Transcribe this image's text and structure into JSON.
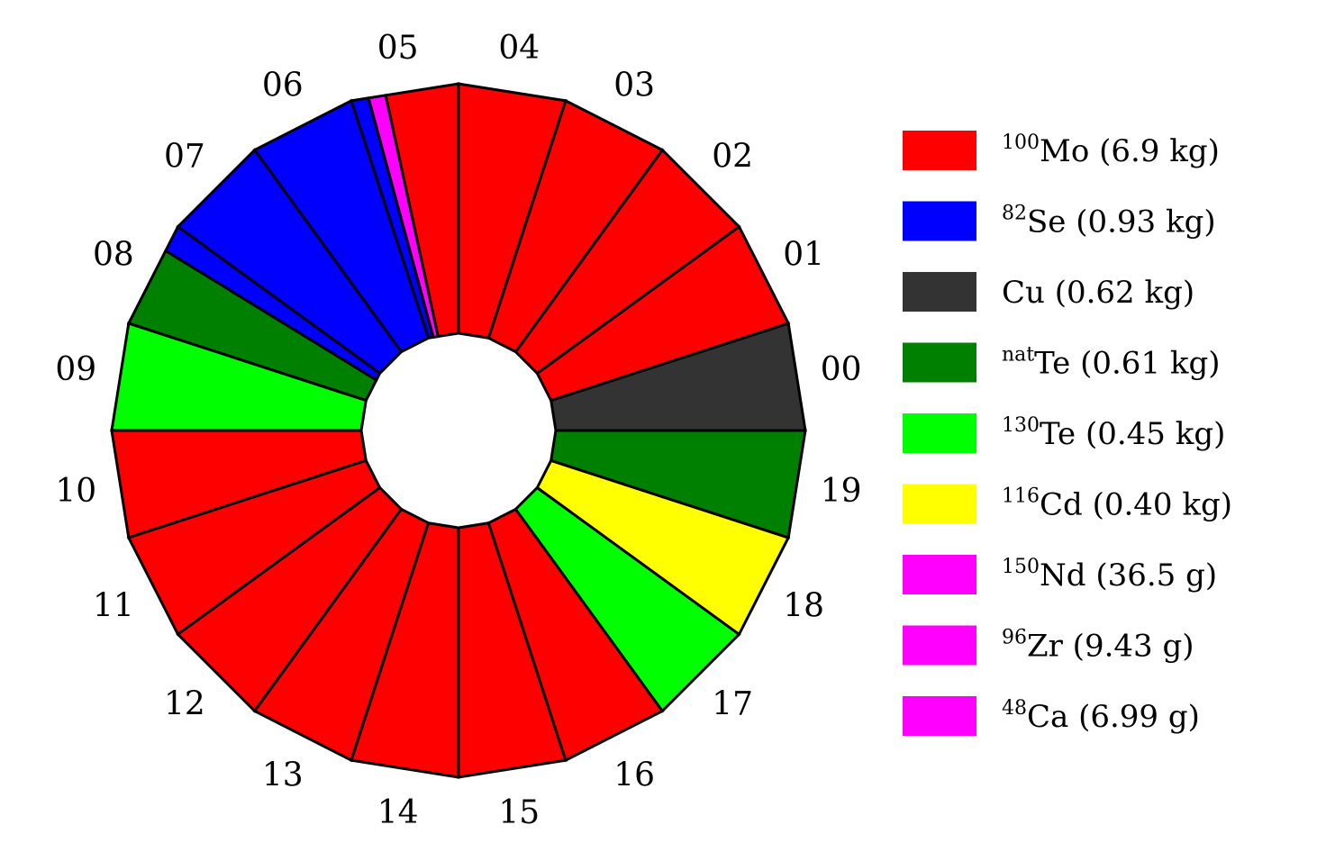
{
  "sectors": [
    {
      "label": "00",
      "parts": [
        {
          "span": 1,
          "color": "#333333"
        }
      ]
    },
    {
      "label": "01",
      "parts": [
        {
          "span": 1,
          "color": "#ff0000"
        }
      ]
    },
    {
      "label": "02",
      "parts": [
        {
          "span": 1,
          "color": "#ff0000"
        }
      ]
    },
    {
      "label": "03",
      "parts": [
        {
          "span": 1,
          "color": "#ff0000"
        }
      ]
    },
    {
      "label": "04",
      "parts": [
        {
          "span": 1,
          "color": "#ff0000"
        }
      ]
    },
    {
      "label": "05",
      "parts": [
        {
          "span": 0.68,
          "color": "#ff0000"
        },
        {
          "span": 0.16,
          "color": "#ff00ff"
        },
        {
          "span": 0.16,
          "color": "#0000ff"
        }
      ]
    },
    {
      "label": "06",
      "parts": [
        {
          "span": 1,
          "color": "#0000ff"
        }
      ]
    },
    {
      "label": "07",
      "parts": [
        {
          "span": 1,
          "color": "#0000ff"
        }
      ]
    },
    {
      "label": "08",
      "parts": [
        {
          "span": 0.25,
          "color": "#0000ff"
        },
        {
          "span": 0.75,
          "color": "#008000"
        }
      ]
    },
    {
      "label": "09",
      "parts": [
        {
          "span": 1,
          "color": "#00ff00"
        }
      ]
    },
    {
      "label": "10",
      "parts": [
        {
          "span": 1,
          "color": "#ff0000"
        }
      ]
    },
    {
      "label": "11",
      "parts": [
        {
          "span": 1,
          "color": "#ff0000"
        }
      ]
    },
    {
      "label": "12",
      "parts": [
        {
          "span": 1,
          "color": "#ff0000"
        }
      ]
    },
    {
      "label": "13",
      "parts": [
        {
          "span": 1,
          "color": "#ff0000"
        }
      ]
    },
    {
      "label": "14",
      "parts": [
        {
          "span": 1,
          "color": "#ff0000"
        }
      ]
    },
    {
      "label": "15",
      "parts": [
        {
          "span": 1,
          "color": "#ff0000"
        }
      ]
    },
    {
      "label": "16",
      "parts": [
        {
          "span": 1,
          "color": "#ff0000"
        }
      ]
    },
    {
      "label": "17",
      "parts": [
        {
          "span": 1,
          "color": "#00ff00"
        }
      ]
    },
    {
      "label": "18",
      "parts": [
        {
          "span": 1,
          "color": "#ffff00"
        }
      ]
    },
    {
      "label": "19",
      "parts": [
        {
          "span": 1,
          "color": "#008000"
        }
      ]
    }
  ],
  "legend": [
    {
      "sup": "100",
      "isotope": "Mo",
      "amount": "(6.9 kg)",
      "color": "#ff0000"
    },
    {
      "sup": "82",
      "isotope": "Se",
      "amount": "(0.93 kg)",
      "color": "#0000ff"
    },
    {
      "sup": "",
      "isotope": "Cu",
      "amount": "(0.62 kg)",
      "color": "#333333"
    },
    {
      "sup": "nat",
      "isotope": "Te",
      "amount": "(0.61 kg)",
      "color": "#008000"
    },
    {
      "sup": "130",
      "isotope": "Te",
      "amount": "(0.45 kg)",
      "color": "#00ff00"
    },
    {
      "sup": "116",
      "isotope": "Cd",
      "amount": "(0.40 kg)",
      "color": "#ffff00"
    },
    {
      "sup": "150",
      "isotope": "Nd",
      "amount": "(36.5 g)",
      "color": "#ff00ff"
    },
    {
      "sup": "96",
      "isotope": "Zr",
      "amount": "(9.43 g)",
      "color": "#ff00ff"
    },
    {
      "sup": "48",
      "isotope": "Ca",
      "amount": "(6.99 g)",
      "color": "#ff00ff"
    }
  ]
}
